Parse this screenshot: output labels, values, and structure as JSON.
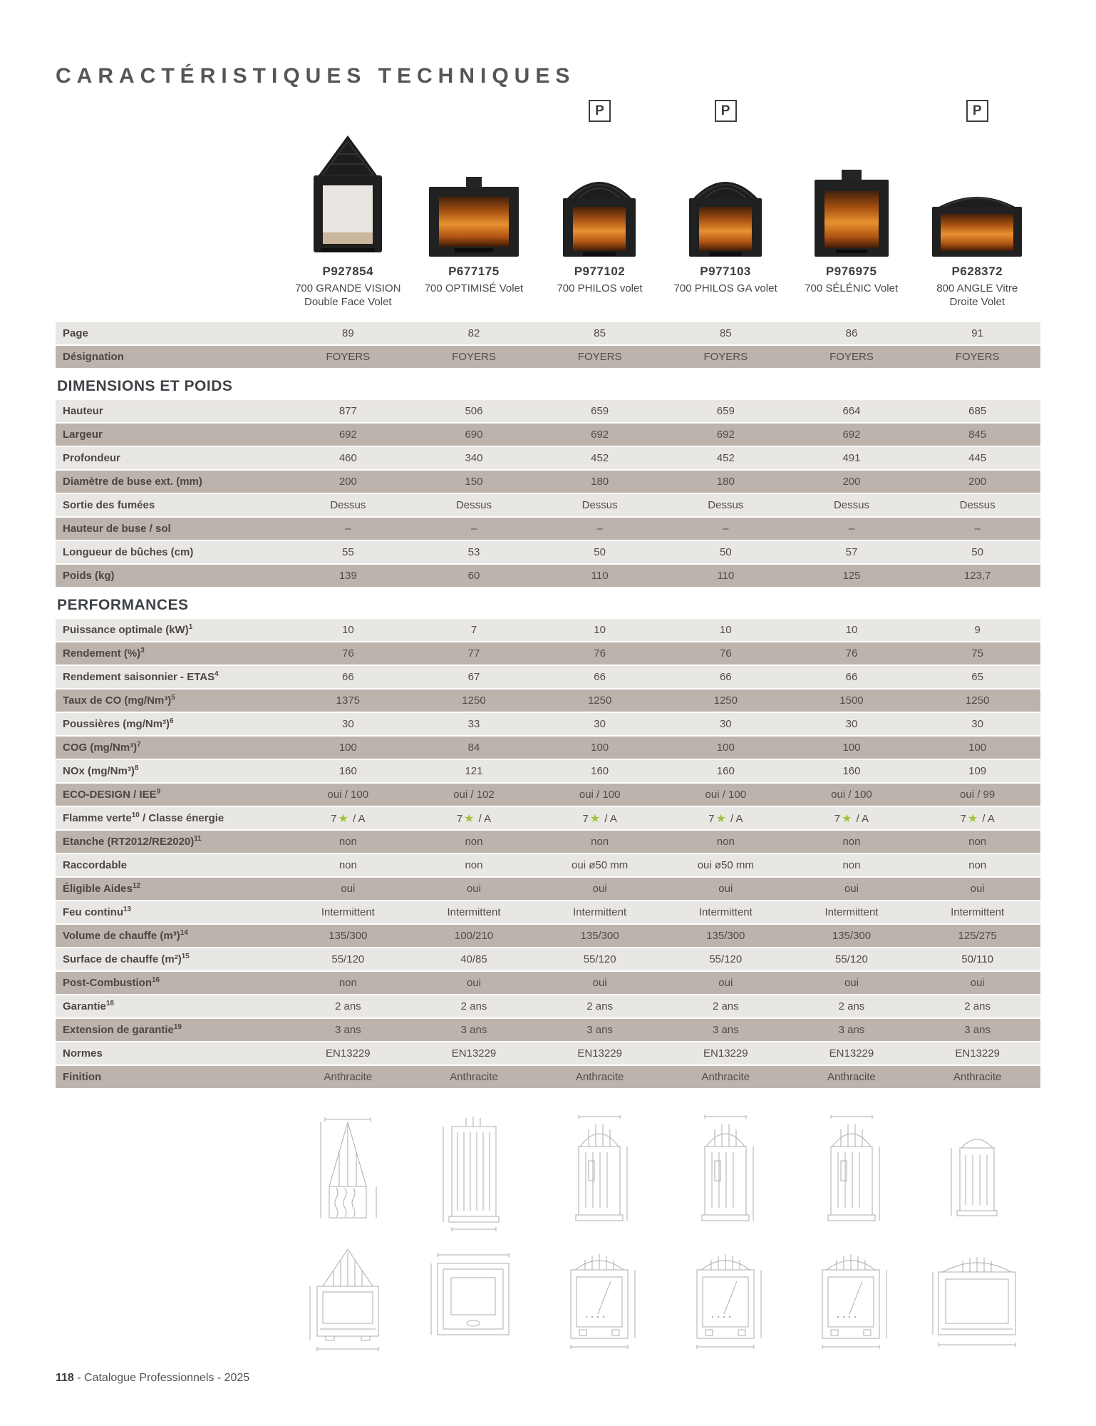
{
  "title": "CARACTÉRISTIQUES TECHNIQUES",
  "p_badge_label": "P",
  "footer": {
    "page_number": "118",
    "rest": " - Catalogue Professionnels - 2025"
  },
  "colors": {
    "row_light": "#e9e7e4",
    "row_dark": "#bcb3ad",
    "star_green": "#9dc33b",
    "title_gray": "#54575a"
  },
  "products": [
    {
      "code": "P927854",
      "name": "700 GRANDE VISION Double Face Volet",
      "p_badge": false,
      "photo": "double-face"
    },
    {
      "code": "P677175",
      "name": "700 OPTIMISÉ Volet",
      "p_badge": false,
      "photo": "box-flue"
    },
    {
      "code": "P977102",
      "name": "700 PHILOS volet",
      "p_badge": true,
      "photo": "dome-fire"
    },
    {
      "code": "P977103",
      "name": "700 PHILOS GA volet",
      "p_badge": true,
      "photo": "dome-fire"
    },
    {
      "code": "P976975",
      "name": "700 SÉLÉNIC Volet",
      "p_badge": false,
      "photo": "box-fire"
    },
    {
      "code": "P628372",
      "name": "800 ANGLE Vitre Droite Volet",
      "p_badge": true,
      "photo": "wide-fire"
    }
  ],
  "table": {
    "rows_before_sections": [
      {
        "label": "Page",
        "values": [
          "89",
          "82",
          "85",
          "85",
          "86",
          "91"
        ]
      },
      {
        "label": "Désignation",
        "tall": true,
        "values": [
          "FOYERS",
          "FOYERS",
          "FOYERS",
          "FOYERS",
          "FOYERS",
          "FOYERS"
        ]
      }
    ],
    "sections": [
      {
        "heading": "DIMENSIONS ET POIDS",
        "rows": [
          {
            "label": "Hauteur",
            "values": [
              "877",
              "506",
              "659",
              "659",
              "664",
              "685"
            ]
          },
          {
            "label": "Largeur",
            "values": [
              "692",
              "690",
              "692",
              "692",
              "692",
              "845"
            ]
          },
          {
            "label": "Profondeur",
            "values": [
              "460",
              "340",
              "452",
              "452",
              "491",
              "445"
            ]
          },
          {
            "label": "Diamètre de buse ext. (mm)",
            "values": [
              "200",
              "150",
              "180",
              "180",
              "200",
              "200"
            ]
          },
          {
            "label": "Sortie des fumées",
            "values": [
              "Dessus",
              "Dessus",
              "Dessus",
              "Dessus",
              "Dessus",
              "Dessus"
            ]
          },
          {
            "label": "Hauteur de buse / sol",
            "values": [
              "–",
              "–",
              "–",
              "–",
              "–",
              "–"
            ]
          },
          {
            "label": "Longueur de bûches (cm)",
            "values": [
              "55",
              "53",
              "50",
              "50",
              "57",
              "50"
            ]
          },
          {
            "label": "Poids (kg)",
            "values": [
              "139",
              "60",
              "110",
              "110",
              "125",
              "123,7"
            ]
          }
        ]
      },
      {
        "heading": "PERFORMANCES",
        "rows": [
          {
            "label": "Puissance optimale (kW)",
            "sup": "1",
            "values": [
              "10",
              "7",
              "10",
              "10",
              "10",
              "9"
            ]
          },
          {
            "label": "Rendement (%)",
            "sup": "3",
            "values": [
              "76",
              "77",
              "76",
              "76",
              "76",
              "75"
            ]
          },
          {
            "label": "Rendement saisonnier - ETAS",
            "sup": "4",
            "values": [
              "66",
              "67",
              "66",
              "66",
              "66",
              "65"
            ]
          },
          {
            "label": "Taux de CO (mg/Nm³)",
            "sup": "5",
            "values": [
              "1375",
              "1250",
              "1250",
              "1250",
              "1500",
              "1250"
            ]
          },
          {
            "label": "Poussières (mg/Nm³)",
            "sup": "6",
            "values": [
              "30",
              "33",
              "30",
              "30",
              "30",
              "30"
            ]
          },
          {
            "label": "COG (mg/Nm³)",
            "sup": "7",
            "values": [
              "100",
              "84",
              "100",
              "100",
              "100",
              "100"
            ]
          },
          {
            "label": "NOx (mg/Nm³)",
            "sup": "8",
            "values": [
              "160",
              "121",
              "160",
              "160",
              "160",
              "109"
            ]
          },
          {
            "label": "ECO-DESIGN / IEE",
            "sup": "9",
            "values": [
              "oui / 100",
              "oui / 102",
              "oui / 100",
              "oui / 100",
              "oui / 100",
              "oui / 99"
            ]
          },
          {
            "label": "Flamme verte",
            "sup": "10",
            "label_after": " / Classe énergie",
            "values": [
              "7★ / A",
              "7★ / A",
              "7★ / A",
              "7★ / A",
              "7★ / A",
              "7★ / A"
            ]
          },
          {
            "label": "Etanche (RT2012/RE2020)",
            "sup": "11",
            "values": [
              "non",
              "non",
              "non",
              "non",
              "non",
              "non"
            ]
          },
          {
            "label": "Raccordable",
            "values": [
              "non",
              "non",
              "oui ø50 mm",
              "oui ø50 mm",
              "non",
              "non"
            ]
          },
          {
            "label": "Éligible Aides",
            "sup": "12",
            "values": [
              "oui",
              "oui",
              "oui",
              "oui",
              "oui",
              "oui"
            ]
          },
          {
            "label": "Feu continu",
            "sup": "13",
            "values": [
              "Intermittent",
              "Intermittent",
              "Intermittent",
              "Intermittent",
              "Intermittent",
              "Intermittent"
            ]
          },
          {
            "label": "Volume de chauffe (m³)",
            "sup": "14",
            "values": [
              "135/300",
              "100/210",
              "135/300",
              "135/300",
              "135/300",
              "125/275"
            ]
          },
          {
            "label": "Surface de chauffe (m²)",
            "sup": "15",
            "values": [
              "55/120",
              "40/85",
              "55/120",
              "55/120",
              "55/120",
              "50/110"
            ]
          },
          {
            "label": "Post-Combustion",
            "sup": "16",
            "values": [
              "non",
              "oui",
              "oui",
              "oui",
              "oui",
              "oui"
            ]
          },
          {
            "label": "Garantie",
            "sup": "18",
            "values": [
              "2 ans",
              "2 ans",
              "2 ans",
              "2 ans",
              "2 ans",
              "2 ans"
            ]
          },
          {
            "label": "Extension de garantie",
            "sup": "19",
            "values": [
              "3 ans",
              "3 ans",
              "3 ans",
              "3 ans",
              "3 ans",
              "3 ans"
            ]
          },
          {
            "label": "Normes",
            "values": [
              "EN13229",
              "EN13229",
              "EN13229",
              "EN13229",
              "EN13229",
              "EN13229"
            ]
          },
          {
            "label": "Finition",
            "values": [
              "Anthracite",
              "Anthracite",
              "Anthracite",
              "Anthracite",
              "Anthracite",
              "Anthracite"
            ]
          }
        ]
      }
    ]
  }
}
